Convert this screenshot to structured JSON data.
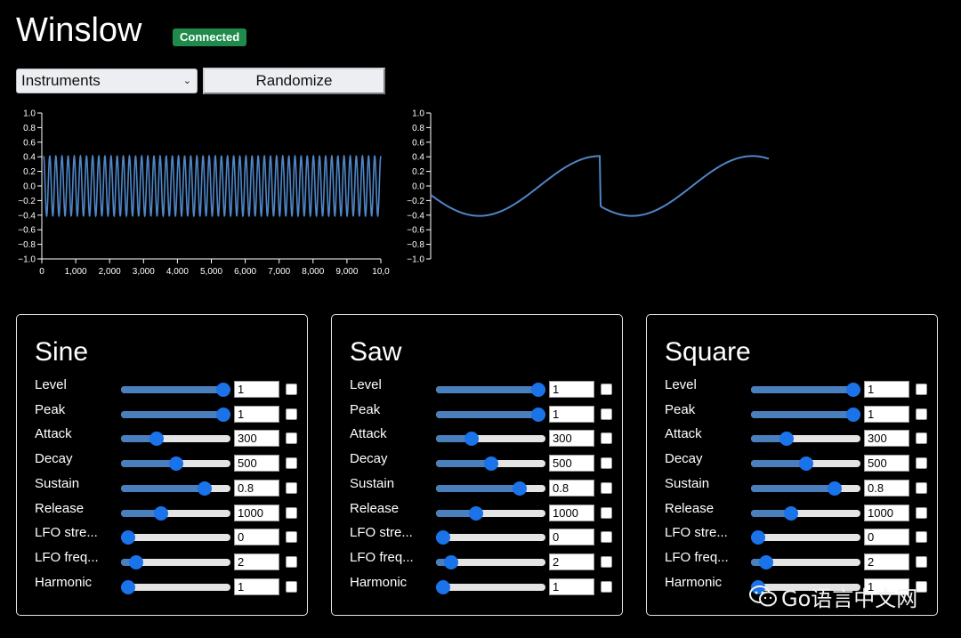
{
  "app": {
    "title": "Winslow",
    "status": "Connected"
  },
  "controls": {
    "instrument_select": {
      "value": "Instruments"
    },
    "randomize_label": "Randomize"
  },
  "chart_data": [
    {
      "type": "line",
      "title": "",
      "xlim": [
        0,
        10000
      ],
      "ylim": [
        -1.0,
        1.0
      ],
      "x_ticks": [
        "0",
        "1,000",
        "2,000",
        "3,000",
        "4,000",
        "5,000",
        "6,000",
        "7,000",
        "8,000",
        "9,000",
        "10,0"
      ],
      "y_ticks": [
        "1.0",
        "0.8",
        "0.6",
        "0.4",
        "0.2",
        "0.0",
        "−0.2",
        "−0.4",
        "−0.6",
        "−0.8",
        "−1.0"
      ],
      "series": [
        {
          "amplitude": 0.41,
          "cycles": 55,
          "color": "#4f86c6"
        }
      ],
      "grid": false
    },
    {
      "type": "line",
      "title": "",
      "ylim": [
        -1.0,
        1.0
      ],
      "y_ticks": [
        "1.0",
        "0.8",
        "0.6",
        "0.4",
        "0.2",
        "0.0",
        "−0.2",
        "−0.4",
        "−0.6",
        "−0.8",
        "−1.0"
      ],
      "series": [
        {
          "amplitude": 0.41,
          "color": "#4f86c6"
        }
      ],
      "grid": false
    }
  ],
  "panels": [
    {
      "title": "Sine",
      "params": [
        {
          "label": "Level",
          "value": "1",
          "fraction": 1.0
        },
        {
          "label": "Peak",
          "value": "1",
          "fraction": 1.0
        },
        {
          "label": "Attack",
          "value": "300",
          "fraction": 0.3
        },
        {
          "label": "Decay",
          "value": "500",
          "fraction": 0.5
        },
        {
          "label": "Sustain",
          "value": "0.8",
          "fraction": 0.8
        },
        {
          "label": "Release",
          "value": "1000",
          "fraction": 0.35
        },
        {
          "label": "LFO stre...",
          "value": "0",
          "fraction": 0.0
        },
        {
          "label": "LFO freq...",
          "value": "2",
          "fraction": 0.08
        },
        {
          "label": "Harmonic",
          "value": "1",
          "fraction": 0.0
        }
      ]
    },
    {
      "title": "Saw",
      "params": [
        {
          "label": "Level",
          "value": "1",
          "fraction": 1.0
        },
        {
          "label": "Peak",
          "value": "1",
          "fraction": 1.0
        },
        {
          "label": "Attack",
          "value": "300",
          "fraction": 0.3
        },
        {
          "label": "Decay",
          "value": "500",
          "fraction": 0.5
        },
        {
          "label": "Sustain",
          "value": "0.8",
          "fraction": 0.8
        },
        {
          "label": "Release",
          "value": "1000",
          "fraction": 0.35
        },
        {
          "label": "LFO stre...",
          "value": "0",
          "fraction": 0.0
        },
        {
          "label": "LFO freq...",
          "value": "2",
          "fraction": 0.08
        },
        {
          "label": "Harmonic",
          "value": "1",
          "fraction": 0.0
        }
      ]
    },
    {
      "title": "Square",
      "params": [
        {
          "label": "Level",
          "value": "1",
          "fraction": 1.0
        },
        {
          "label": "Peak",
          "value": "1",
          "fraction": 1.0
        },
        {
          "label": "Attack",
          "value": "300",
          "fraction": 0.3
        },
        {
          "label": "Decay",
          "value": "500",
          "fraction": 0.5
        },
        {
          "label": "Sustain",
          "value": "0.8",
          "fraction": 0.8
        },
        {
          "label": "Release",
          "value": "1000",
          "fraction": 0.35
        },
        {
          "label": "LFO stre...",
          "value": "0",
          "fraction": 0.0
        },
        {
          "label": "LFO freq...",
          "value": "2",
          "fraction": 0.08
        },
        {
          "label": "Harmonic",
          "value": "1",
          "fraction": 0.0
        }
      ]
    }
  ],
  "watermark": {
    "text": "Go语言中文网",
    "icon": "wechat-icon"
  }
}
